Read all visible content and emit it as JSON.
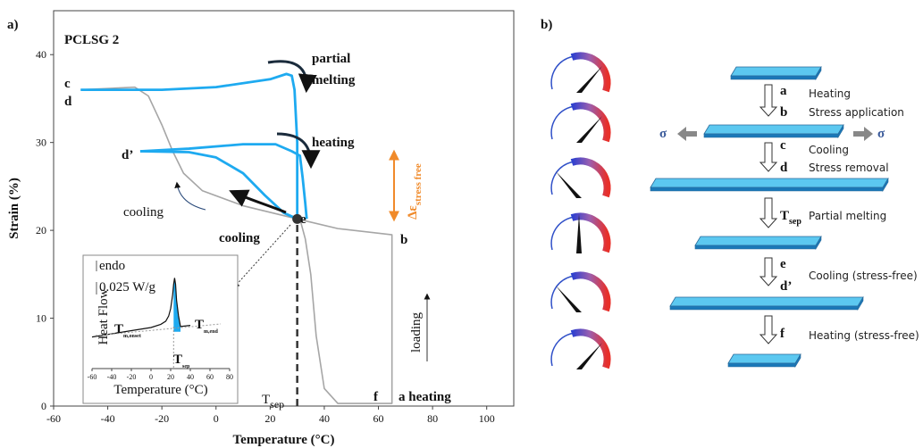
{
  "chart_data": [
    {
      "type": "line",
      "panel_label": "a)",
      "title": "PCLSG 2",
      "xlabel": "Temperature (°C)",
      "ylabel": "Strain (%)",
      "xlim": [
        -60,
        110
      ],
      "xticks": [
        -60,
        -40,
        -20,
        0,
        20,
        40,
        60,
        80,
        100
      ],
      "ylim": [
        0,
        45
      ],
      "yticks": [
        0,
        10,
        20,
        30,
        40
      ],
      "series": [
        {
          "color": "#a6a6a6",
          "x": [
            -50,
            -30,
            -25,
            -20,
            -16,
            -12,
            -5,
            10,
            30,
            45,
            65,
            65,
            45,
            40,
            37,
            35,
            33,
            31
          ],
          "values": [
            36,
            36.3,
            35.3,
            32,
            29,
            26.5,
            24.5,
            22.8,
            21.3,
            20.2,
            19.5,
            0.3,
            0.3,
            2,
            8,
            15,
            19,
            21.3
          ]
        },
        {
          "color": "#1eaaf0",
          "x": [
            -50,
            -20,
            0,
            20,
            26,
            28,
            29,
            30,
            30
          ],
          "values": [
            36,
            36,
            36.3,
            37.2,
            37.8,
            37.6,
            36,
            30,
            21.3
          ]
        },
        {
          "color": "#1eaaf0",
          "x": [
            -28,
            -10,
            10,
            22,
            28,
            31,
            32,
            33,
            33.5
          ],
          "values": [
            29,
            29.3,
            29.8,
            29.8,
            29,
            28.5,
            26,
            23,
            21.3
          ]
        },
        {
          "color": "#1eaaf0",
          "x": [
            30,
            25,
            18,
            10,
            0,
            -10,
            -28
          ],
          "values": [
            21.3,
            22,
            24,
            26.5,
            28.3,
            28.9,
            29
          ]
        }
      ],
      "marker": {
        "x": 30,
        "y": 21.3,
        "color": "#333333"
      },
      "annotations": [
        {
          "text": "c"
        },
        {
          "text": "d"
        },
        {
          "text": "d’"
        },
        {
          "text": "e"
        },
        {
          "text": "b"
        },
        {
          "text": "f"
        },
        {
          "text": "a heating"
        },
        {
          "text": "partial"
        },
        {
          "text": "melting"
        },
        {
          "text": "heating"
        },
        {
          "text": "cooling"
        },
        {
          "text": "cooling"
        },
        {
          "text": "loading"
        },
        {
          "text": "T",
          "sub": "sep"
        },
        {
          "text": "Δε",
          "sub": "stress free"
        }
      ]
    },
    {
      "type": "line",
      "xlabel": "Temperature (°C)",
      "ylabel": "Heat Flow",
      "xlim": [
        -60,
        80
      ],
      "xticks": [
        -60,
        -40,
        -20,
        0,
        20,
        40,
        60,
        80
      ],
      "ylim": [
        0,
        10
      ],
      "series": [
        {
          "color": "#111111",
          "x": [
            -60,
            -40,
            -20,
            0,
            10,
            15,
            18,
            20,
            22,
            23,
            24,
            25,
            26,
            28,
            30,
            40
          ],
          "values": [
            3.0,
            3.3,
            3.6,
            3.9,
            4.2,
            4.5,
            5.0,
            5.7,
            7,
            8,
            8.6,
            8.0,
            6.5,
            5,
            4.0,
            4.1
          ]
        }
      ],
      "shaded_xlim": [
        23,
        30
      ],
      "shade_color": "#1eaaf0",
      "annotations": [
        {
          "text": "endo"
        },
        {
          "text": "0.025 W/g"
        },
        {
          "text": "T",
          "sub": "m,onset"
        },
        {
          "text": "T",
          "sub": "m,end"
        },
        {
          "text": "T",
          "sub": "sep"
        }
      ]
    }
  ],
  "diagram": {
    "label": "b)",
    "items": [
      {
        "text": "a"
      },
      {
        "text": "b"
      },
      {
        "text": "Heating"
      },
      {
        "text": "Stress application"
      },
      {
        "text": "σ"
      },
      {
        "text": "σ"
      },
      {
        "text": "c"
      },
      {
        "text": "d"
      },
      {
        "text": "Cooling"
      },
      {
        "text": "Stress removal"
      },
      {
        "text": "T",
        "sub": "sep"
      },
      {
        "text": "Partial melting"
      },
      {
        "text": "e"
      },
      {
        "text": "d’"
      },
      {
        "text": "Cooling (stress-free)"
      },
      {
        "text": "f"
      },
      {
        "text": "Heating (stress-free)"
      }
    ]
  }
}
